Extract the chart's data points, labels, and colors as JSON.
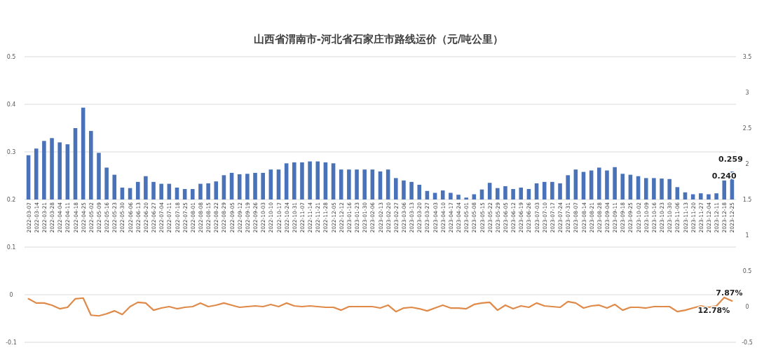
{
  "chart_data": {
    "type": "bar",
    "title": "山西省渭南市-河北省石家庄市路线运价（元/吨公里）",
    "categories": [
      "2022-03-07",
      "2022-03-14",
      "2022-03-21",
      "2022-03-28",
      "2022-04-04",
      "2022-04-11",
      "2022-04-18",
      "2022-04-25",
      "2022-05-02",
      "2022-05-09",
      "2022-05-16",
      "2022-05-23",
      "2022-05-30",
      "2022-06-06",
      "2022-06-13",
      "2022-06-20",
      "2022-06-27",
      "2022-07-04",
      "2022-07-11",
      "2022-07-18",
      "2022-07-25",
      "2022-08-01",
      "2022-08-08",
      "2022-08-15",
      "2022-08-22",
      "2022-08-29",
      "2022-09-05",
      "2022-09-12",
      "2022-09-19",
      "2022-09-26",
      "2022-10-03",
      "2022-10-10",
      "2022-10-17",
      "2022-10-24",
      "2022-10-31",
      "2022-11-07",
      "2022-11-14",
      "2022-11-21",
      "2022-11-28",
      "2022-12-05",
      "2022-12-12",
      "2023-01-16",
      "2023-01-23",
      "2023-01-30",
      "2023-02-06",
      "2023-02-13",
      "2023-02-20",
      "2023-02-27",
      "2023-03-06",
      "2023-03-13",
      "2023-03-20",
      "2023-03-27",
      "2023-04-03",
      "2023-04-10",
      "2023-04-17",
      "2023-04-24",
      "2023-05-01",
      "2023-05-08",
      "2023-05-15",
      "2023-05-22",
      "2023-05-29",
      "2023-06-05",
      "2023-06-12",
      "2023-06-19",
      "2023-06-26",
      "2023-07-03",
      "2023-07-10",
      "2023-07-17",
      "2023-07-24",
      "2023-07-31",
      "2023-08-07",
      "2023-08-14",
      "2023-08-21",
      "2023-08-28",
      "2023-09-04",
      "2023-09-11",
      "2023-09-18",
      "2023-09-25",
      "2023-10-02",
      "2023-10-09",
      "2023-10-16",
      "2023-10-23",
      "2023-10-30",
      "2023-11-06",
      "2023-11-13",
      "2023-11-20",
      "2023-11-27",
      "2023-12-04",
      "2023-12-11",
      "2023-12-18",
      "2023-12-25"
    ],
    "series": [
      {
        "type": "bar",
        "color": "#4a72b8",
        "base": [
          0.2,
          0.2,
          0.2,
          0.2,
          0.2,
          0.2,
          0.2,
          0.2,
          0.2,
          0.2,
          0.2,
          0.2,
          0.2,
          0.2,
          0.2,
          0.2,
          0.2,
          0.2,
          0.2,
          0.2,
          0.2,
          0.2,
          0.2,
          0.2,
          0.2,
          0.2,
          0.2,
          0.2,
          0.2,
          0.2,
          0.2,
          0.2,
          0.2,
          0.2,
          0.2,
          0.2,
          0.2,
          0.2,
          0.2,
          0.2,
          0.2,
          0.2,
          0.2,
          0.2,
          0.2,
          0.2,
          0.2,
          0.2,
          0.2,
          0.2,
          0.2,
          0.2,
          0.2,
          0.2,
          0.2,
          0.2,
          0.2,
          0.2,
          0.2,
          0.2,
          0.2,
          0.2,
          0.2,
          0.2,
          0.2,
          0.2,
          0.2,
          0.2,
          0.2,
          0.2,
          0.2,
          0.2,
          0.2,
          0.2,
          0.2,
          0.2,
          0.2,
          0.2,
          0.2,
          0.2,
          0.2,
          0.2,
          0.2,
          0.2,
          0.2,
          0.2,
          0.2,
          0.2,
          0.2,
          0.2,
          0.2
        ],
        "values": [
          0.093,
          0.107,
          0.123,
          0.129,
          0.12,
          0.116,
          0.15,
          0.193,
          0.144,
          0.098,
          0.067,
          0.052,
          0.025,
          0.024,
          0.037,
          0.049,
          0.037,
          0.033,
          0.033,
          0.025,
          0.022,
          0.022,
          0.033,
          0.034,
          0.038,
          0.051,
          0.056,
          0.053,
          0.054,
          0.056,
          0.056,
          0.063,
          0.063,
          0.076,
          0.078,
          0.078,
          0.08,
          0.08,
          0.078,
          0.076,
          0.063,
          0.063,
          0.063,
          0.063,
          0.063,
          0.059,
          0.063,
          0.045,
          0.04,
          0.037,
          0.031,
          0.018,
          0.014,
          0.019,
          0.014,
          0.01,
          0.004,
          0.011,
          0.021,
          0.035,
          0.024,
          0.028,
          0.022,
          0.025,
          0.022,
          0.034,
          0.037,
          0.037,
          0.034,
          0.051,
          0.063,
          0.058,
          0.061,
          0.067,
          0.061,
          0.068,
          0.054,
          0.052,
          0.049,
          0.045,
          0.045,
          0.044,
          0.043,
          0.026,
          0.015,
          0.011,
          0.013,
          0.011,
          0.013,
          0.04,
          0.059
        ],
        "value_labels": [
          null,
          null,
          null,
          null,
          null,
          null,
          null,
          null,
          null,
          null,
          null,
          null,
          null,
          null,
          null,
          null,
          null,
          null,
          null,
          null,
          null,
          null,
          null,
          null,
          null,
          null,
          null,
          null,
          null,
          null,
          null,
          null,
          null,
          null,
          null,
          null,
          null,
          null,
          null,
          null,
          null,
          null,
          null,
          null,
          null,
          null,
          null,
          null,
          null,
          null,
          null,
          null,
          null,
          null,
          null,
          null,
          null,
          null,
          null,
          null,
          null,
          null,
          null,
          null,
          null,
          null,
          null,
          null,
          null,
          null,
          null,
          null,
          null,
          null,
          null,
          null,
          null,
          null,
          null,
          null,
          null,
          null,
          null,
          null,
          null,
          null,
          null,
          null,
          null,
          "0.240",
          "0.259"
        ]
      },
      {
        "type": "line",
        "axis": "y2",
        "color": "#e08a4a",
        "values": [
          0.11,
          0.05,
          0.05,
          0.02,
          -0.03,
          -0.01,
          0.11,
          0.12,
          -0.12,
          -0.13,
          -0.1,
          -0.06,
          -0.11,
          0.0,
          0.06,
          0.05,
          -0.05,
          -0.02,
          0.0,
          -0.03,
          -0.01,
          0.0,
          0.05,
          0.0,
          0.02,
          0.05,
          0.02,
          -0.01,
          0.0,
          0.01,
          0.0,
          0.03,
          0.0,
          0.05,
          0.01,
          0.0,
          0.01,
          0.0,
          -0.01,
          -0.01,
          -0.05,
          0.0,
          0.0,
          0.0,
          0.0,
          -0.02,
          0.02,
          -0.07,
          -0.02,
          -0.01,
          -0.03,
          -0.06,
          -0.02,
          0.02,
          -0.02,
          -0.02,
          -0.03,
          0.03,
          0.05,
          0.06,
          -0.05,
          0.02,
          -0.03,
          0.01,
          -0.01,
          0.05,
          0.01,
          0.0,
          -0.01,
          0.07,
          0.05,
          -0.02,
          0.01,
          0.02,
          -0.02,
          0.03,
          -0.05,
          -0.01,
          -0.01,
          -0.02,
          0.0,
          0.0,
          0.0,
          -0.07,
          -0.05,
          -0.02,
          0.01,
          -0.01,
          0.01,
          0.1278,
          0.0787
        ],
        "value_labels": [
          null,
          null,
          null,
          null,
          null,
          null,
          null,
          null,
          null,
          null,
          null,
          null,
          null,
          null,
          null,
          null,
          null,
          null,
          null,
          null,
          null,
          null,
          null,
          null,
          null,
          null,
          null,
          null,
          null,
          null,
          null,
          null,
          null,
          null,
          null,
          null,
          null,
          null,
          null,
          null,
          null,
          null,
          null,
          null,
          null,
          null,
          null,
          null,
          null,
          null,
          null,
          null,
          null,
          null,
          null,
          null,
          null,
          null,
          null,
          null,
          null,
          null,
          null,
          null,
          null,
          null,
          null,
          null,
          null,
          null,
          null,
          null,
          null,
          null,
          null,
          null,
          null,
          null,
          null,
          null,
          null,
          null,
          null,
          null,
          null,
          null,
          null,
          null,
          null,
          "12.78%",
          "7.87%"
        ]
      }
    ],
    "ylim": [
      -0.1,
      0.5
    ],
    "yticks": [
      -0.1,
      0,
      0.1,
      0.2,
      0.3,
      0.4,
      0.5
    ],
    "y2lim": [
      -0.5,
      3.5
    ],
    "y2ticks": [
      -0.5,
      0,
      0.5,
      1,
      1.5,
      2,
      2.5,
      3,
      3.5
    ],
    "grid": "y"
  }
}
